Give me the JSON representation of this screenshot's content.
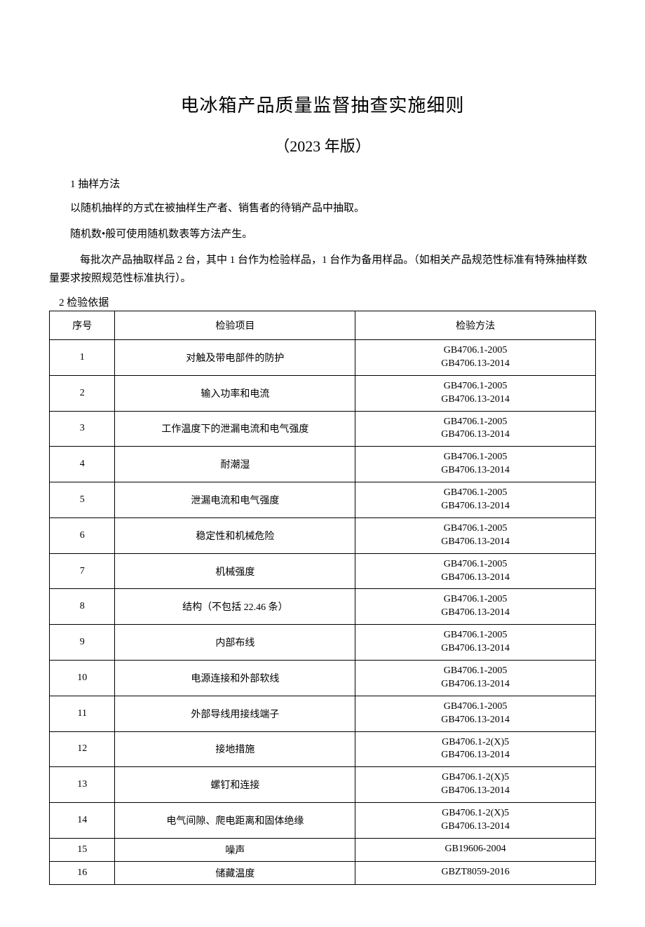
{
  "title": "电冰箱产品质量监督抽查实施细则",
  "subtitle": "（2023 年版）",
  "section1_heading": "1 抽样方法",
  "para1": "以随机抽样的方式在被抽样生产者、销售者的待销产品中抽取。",
  "para2": "随机数•般可使用随机数表等方法产生。",
  "para3": "每批次产品抽取样品 2 台，其中 1 台作为检验样品，1 台作为备用样品。（如相关产品规范性标准有特殊抽样数量要求按照规范性标准执行）。",
  "section2_heading": "2 检验依据",
  "table": {
    "headers": {
      "seq": "序号",
      "item": "检验项目",
      "method": "检验方法"
    },
    "rows": [
      {
        "seq": "1",
        "item": "对触及带电部件的防护",
        "method": [
          "GB4706.1-2005",
          "GB4706.13-2014"
        ]
      },
      {
        "seq": "2",
        "item": "输入功率和电流",
        "method": [
          "GB4706.1-2005",
          "GB4706.13-2014"
        ]
      },
      {
        "seq": "3",
        "item": "工作温度下的泄漏电流和电气强度",
        "method": [
          "GB4706.1-2005",
          "GB4706.13-2014"
        ]
      },
      {
        "seq": "4",
        "item": "耐潮湿",
        "method": [
          "GB4706.1-2005",
          "GB4706.13-2014"
        ]
      },
      {
        "seq": "5",
        "item": "泄漏电流和电气强度",
        "method": [
          "GB4706.1-2005",
          "GB4706.13-2014"
        ]
      },
      {
        "seq": "6",
        "item": "稳定性和机械危险",
        "method": [
          "GB4706.1-2005",
          "GB4706.13-2014"
        ]
      },
      {
        "seq": "7",
        "item": "机械强度",
        "method": [
          "GB4706.1-2005",
          "GB4706.13-2014"
        ]
      },
      {
        "seq": "8",
        "item": "结构（不包括 22.46 条）",
        "method": [
          "GB4706.1-2005",
          "GB4706.13-2014"
        ]
      },
      {
        "seq": "9",
        "item": "内部布线",
        "method": [
          "GB4706.1-2005",
          "GB4706.13-2014"
        ]
      },
      {
        "seq": "10",
        "item": "电源连接和外部软线",
        "method": [
          "GB4706.1-2005",
          "GB4706.13-2014"
        ]
      },
      {
        "seq": "11",
        "item": "外部导线用接线端子",
        "method": [
          "GB4706.1-2005",
          "GB4706.13-2014"
        ]
      },
      {
        "seq": "12",
        "item": "接地措施",
        "method": [
          "GB4706.1-2(X)5",
          "GB4706.13-2014"
        ]
      },
      {
        "seq": "13",
        "item": "螺钉和连接",
        "method": [
          "GB4706.1-2(X)5",
          "GB4706.13-2014"
        ]
      },
      {
        "seq": "14",
        "item": "电气间隙、爬电距离和固体绝缘",
        "method": [
          "GB4706.1-2(X)5",
          "GB4706.13-2014"
        ]
      },
      {
        "seq": "15",
        "item": "噪声",
        "method": [
          "GB19606-2004"
        ]
      },
      {
        "seq": "16",
        "item": "储藏温度",
        "method": [
          "GBZT8059-2016"
        ]
      }
    ]
  }
}
